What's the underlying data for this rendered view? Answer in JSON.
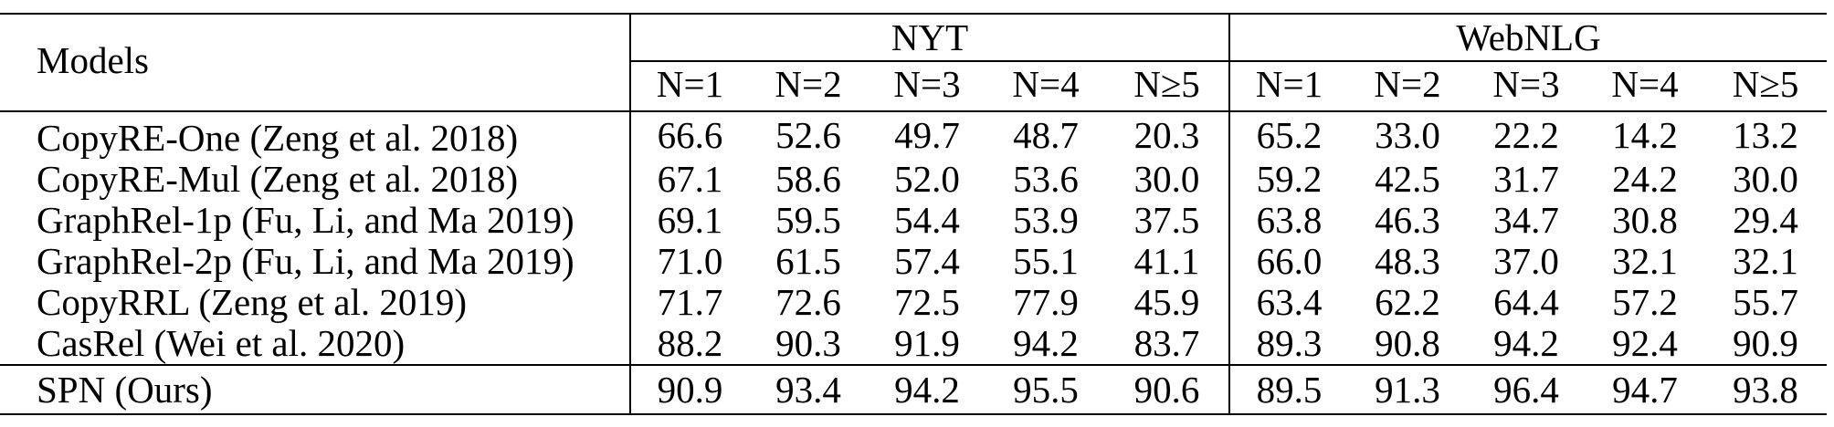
{
  "table": {
    "header": {
      "models_label": "Models",
      "groups": [
        {
          "name": "NYT",
          "columns": [
            "N=1",
            "N=2",
            "N=3",
            "N=4",
            "N≥5"
          ]
        },
        {
          "name": "WebNLG",
          "columns": [
            "N=1",
            "N=2",
            "N=3",
            "N=4",
            "N≥5"
          ]
        }
      ]
    },
    "rows": [
      {
        "model": "CopyRE-One (Zeng et al. 2018)",
        "nyt": [
          "66.6",
          "52.6",
          "49.7",
          "48.7",
          "20.3"
        ],
        "webnlg": [
          "65.2",
          "33.0",
          "22.2",
          "14.2",
          "13.2"
        ]
      },
      {
        "model": "CopyRE-Mul (Zeng et al. 2018)",
        "nyt": [
          "67.1",
          "58.6",
          "52.0",
          "53.6",
          "30.0"
        ],
        "webnlg": [
          "59.2",
          "42.5",
          "31.7",
          "24.2",
          "30.0"
        ]
      },
      {
        "model": "GraphRel-1p (Fu, Li, and Ma 2019)",
        "nyt": [
          "69.1",
          "59.5",
          "54.4",
          "53.9",
          "37.5"
        ],
        "webnlg": [
          "63.8",
          "46.3",
          "34.7",
          "30.8",
          "29.4"
        ]
      },
      {
        "model": "GraphRel-2p (Fu, Li, and Ma 2019)",
        "nyt": [
          "71.0",
          "61.5",
          "57.4",
          "55.1",
          "41.1"
        ],
        "webnlg": [
          "66.0",
          "48.3",
          "37.0",
          "32.1",
          "32.1"
        ]
      },
      {
        "model": "CopyRRL (Zeng et al. 2019)",
        "nyt": [
          "71.7",
          "72.6",
          "72.5",
          "77.9",
          "45.9"
        ],
        "webnlg": [
          "63.4",
          "62.2",
          "64.4",
          "57.2",
          "55.7"
        ]
      },
      {
        "model": "CasRel (Wei et al. 2020)",
        "nyt": [
          "88.2",
          "90.3",
          "91.9",
          "94.2",
          "83.7"
        ],
        "webnlg": [
          "89.3",
          "90.8",
          "94.2",
          "92.4",
          "90.9"
        ]
      }
    ],
    "best_row": {
      "model": "SPN (Ours)",
      "nyt": [
        "90.9",
        "93.4",
        "94.2",
        "95.5",
        "90.6"
      ],
      "webnlg": [
        "89.5",
        "91.3",
        "96.4",
        "94.7",
        "93.8"
      ]
    }
  }
}
